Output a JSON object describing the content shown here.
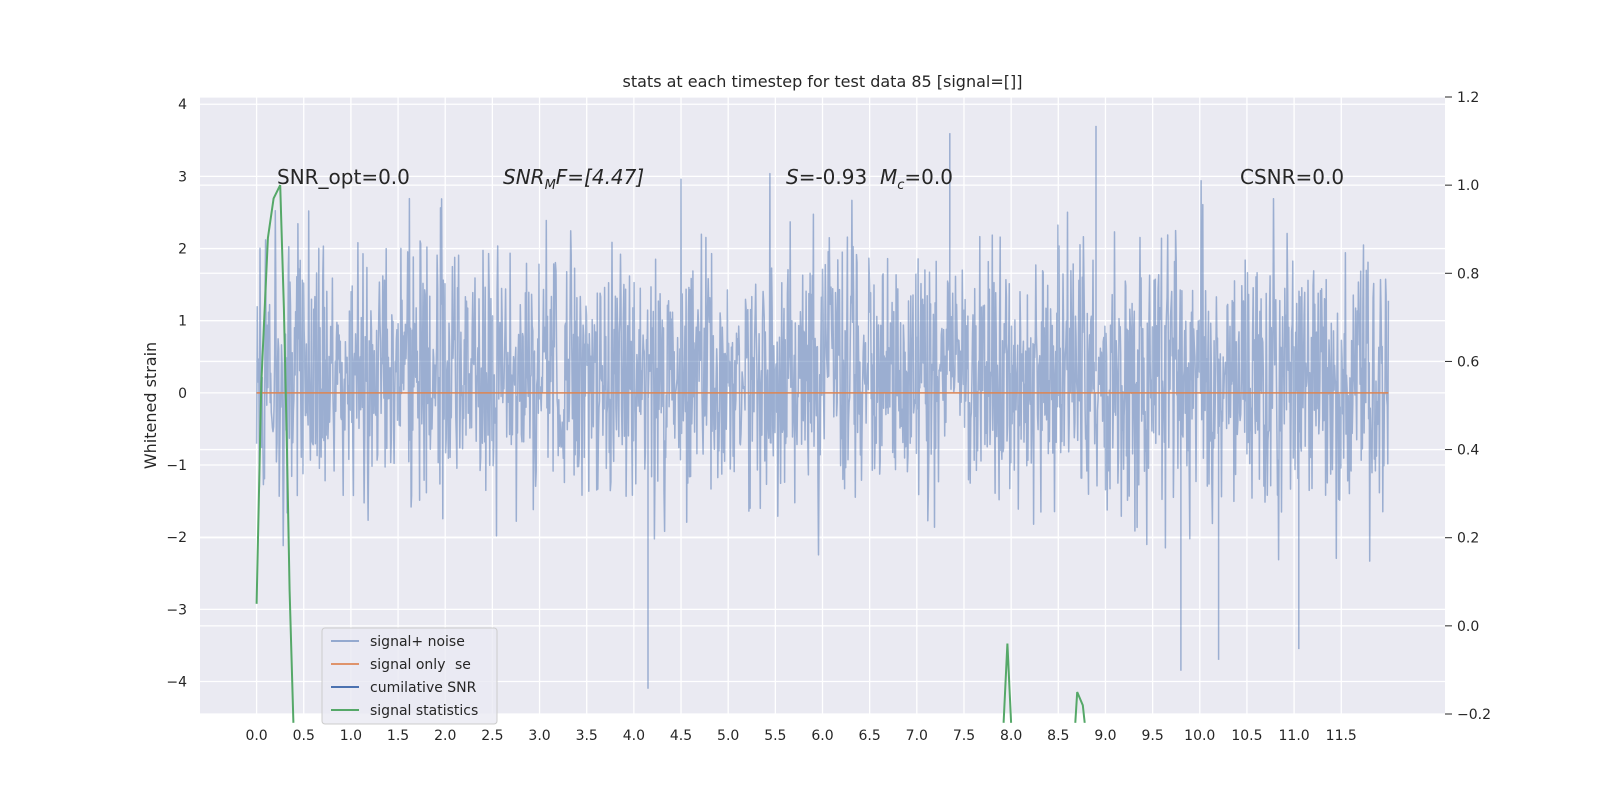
{
  "chart_data": {
    "type": "line",
    "title": "stats at each timestep for test data 85 [signal=[]]",
    "ylabel": "Whitened strain",
    "xlabel": "",
    "xlim": [
      -0.6,
      12.6
    ],
    "ylim": [
      -4.45,
      4.1
    ],
    "y2lim": [
      -0.2,
      1.2
    ],
    "xticks": [
      "0.0",
      "0.5",
      "1.0",
      "1.5",
      "2.0",
      "2.5",
      "3.0",
      "3.5",
      "4.0",
      "4.5",
      "5.0",
      "5.5",
      "6.0",
      "6.5",
      "7.0",
      "7.5",
      "8.0",
      "8.5",
      "9.0",
      "9.5",
      "10.0",
      "10.5",
      "11.0",
      "11.5"
    ],
    "yticks": [
      "4",
      "3",
      "2",
      "1",
      "0",
      "−1",
      "−2",
      "−3",
      "−4"
    ],
    "y2ticks": [
      "1.2",
      "1.0",
      "0.8",
      "0.6",
      "0.4",
      "0.2",
      "0.0",
      "−0.2"
    ],
    "annotations": {
      "snr_opt": "SNR_opt=0.0",
      "snr_mf_main": "SNR",
      "snr_mf_sub": "M",
      "snr_mf_rest": "F=[4.47]",
      "s_main": "S",
      "s_rest": "=-0.93",
      "mc_main": "M",
      "mc_sub": "c",
      "mc_rest": "=0.0",
      "csnr": "CSNR=0.0"
    },
    "grid": true,
    "legend_placement": "lower-left",
    "legend": [
      "signal+ noise",
      "signal only",
      "cumilative SNR",
      "signal statistics"
    ],
    "legend_ghost": "se",
    "noise": {
      "x_range": [
        0.0,
        12.0
      ],
      "envelope_typical": [
        -2.0,
        2.5
      ],
      "extremes": [
        -4.1,
        3.7
      ],
      "peak_highlights": [
        {
          "x": 4.15,
          "y": -4.1
        },
        {
          "x": 7.35,
          "y": 3.6
        },
        {
          "x": 8.9,
          "y": 3.7
        },
        {
          "x": 9.8,
          "y": -3.85
        },
        {
          "x": 10.2,
          "y": -3.7
        },
        {
          "x": 11.05,
          "y": -3.55
        }
      ]
    },
    "series": [
      {
        "name": "signal+ noise",
        "color": "#4c72b0",
        "opacity": 0.5
      },
      {
        "name": "signal only",
        "color": "#dd8452",
        "values": [
          0,
          0
        ],
        "x": [
          0.0,
          12.0
        ]
      },
      {
        "name": "cumilative SNR",
        "color": "#4c72b0",
        "values": []
      },
      {
        "name": "signal statistics",
        "color": "#55a868",
        "segments": [
          {
            "x": [
              0.0,
              0.05,
              0.12,
              0.18,
              0.25,
              0.29,
              0.32,
              0.35,
              0.39
            ],
            "y": [
              0.05,
              0.55,
              0.88,
              0.97,
              1.0,
              0.72,
              0.42,
              0.08,
              -0.22
            ]
          },
          {
            "x": [
              7.92,
              7.96,
              8.0
            ],
            "y": [
              -0.22,
              -0.04,
              -0.22
            ]
          },
          {
            "x": [
              8.68,
              8.7,
              8.76,
              8.78
            ],
            "y": [
              -0.22,
              -0.15,
              -0.18,
              -0.22
            ]
          }
        ]
      }
    ]
  },
  "colors": {
    "plot_bg": "#eaeaf2",
    "grid": "#ffffff",
    "noise": "#4c72b0",
    "signal_only": "#dd8452",
    "cumulative": "#4c72b0",
    "statistics": "#55a868"
  }
}
